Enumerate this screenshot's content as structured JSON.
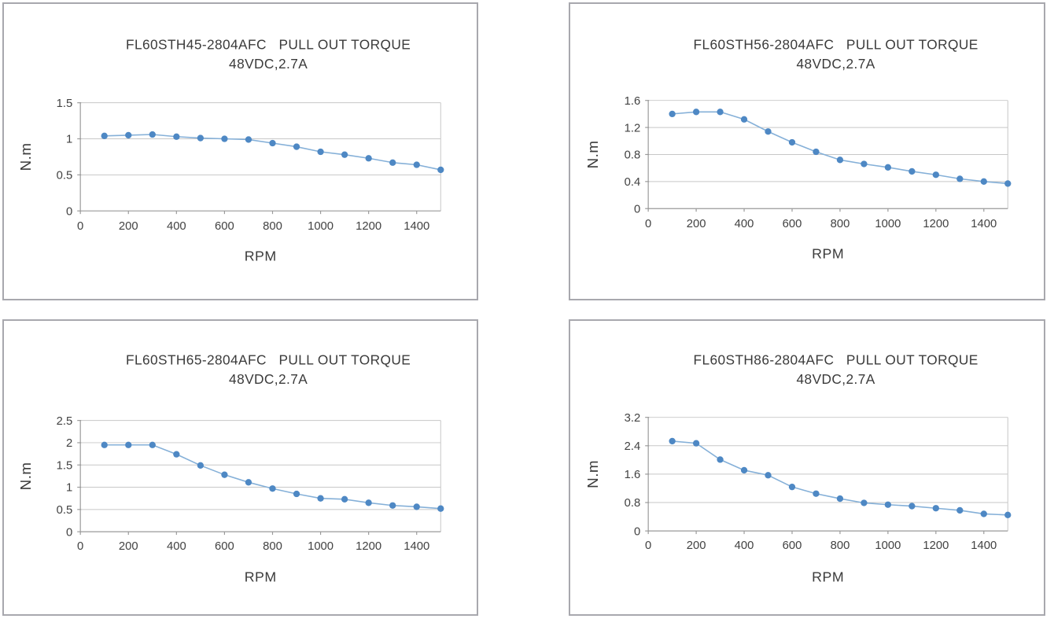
{
  "page": {
    "background": "#ffffff",
    "description_colors": {
      "box_border": "#a8a8ae",
      "axis_line": "#9a9a9a",
      "gridline": "#c7c7c7",
      "marker": "#4e88c4",
      "line": "#85b0d8",
      "text": "#3b3b3b"
    }
  },
  "chart_data": [
    {
      "type": "line",
      "title": "FL60STH45-2804AFC   PULL OUT TORQUE",
      "subtitle": "48VDC,2.7A",
      "xlabel": "RPM",
      "ylabel": "N.m",
      "x": [
        100,
        200,
        300,
        400,
        500,
        600,
        700,
        800,
        900,
        1000,
        1100,
        1200,
        1300,
        1400,
        1500
      ],
      "series": [
        {
          "name": "pull-out-torque",
          "values": [
            1.04,
            1.05,
            1.06,
            1.03,
            1.01,
            1.0,
            0.99,
            0.94,
            0.89,
            0.82,
            0.78,
            0.73,
            0.67,
            0.64,
            0.57
          ]
        }
      ],
      "xlim": [
        0,
        1500
      ],
      "ylim": [
        0,
        1.5
      ],
      "ytick_values": [
        0,
        0.5,
        1,
        1.5
      ],
      "ytick_labels": [
        "0",
        "0.5",
        "1",
        "1.5"
      ],
      "xtick_values": [
        0,
        200,
        400,
        600,
        800,
        1000,
        1200,
        1400
      ],
      "xtick_labels": [
        "0",
        "200",
        "400",
        "600",
        "800",
        "1000",
        "1200",
        "1400"
      ],
      "grid": "horizontal",
      "legend": "none",
      "marker_color": "#4e88c4",
      "line_color": "#85b0d8"
    },
    {
      "type": "line",
      "title": "FL60STH56-2804AFC   PULL OUT TORQUE",
      "subtitle": "48VDC,2.7A",
      "xlabel": "RPM",
      "ylabel": "N.m",
      "x": [
        100,
        200,
        300,
        400,
        500,
        600,
        700,
        800,
        900,
        1000,
        1100,
        1200,
        1300,
        1400,
        1500
      ],
      "series": [
        {
          "name": "pull-out-torque",
          "values": [
            1.4,
            1.43,
            1.43,
            1.32,
            1.14,
            0.98,
            0.84,
            0.72,
            0.66,
            0.61,
            0.55,
            0.5,
            0.44,
            0.4,
            0.37
          ]
        }
      ],
      "xlim": [
        0,
        1500
      ],
      "ylim": [
        0,
        1.6
      ],
      "ytick_values": [
        0,
        0.4,
        0.8,
        1.2,
        1.6
      ],
      "ytick_labels": [
        "0",
        "0.4",
        "0.8",
        "1.2",
        "1.6"
      ],
      "xtick_values": [
        0,
        200,
        400,
        600,
        800,
        1000,
        1200,
        1400
      ],
      "xtick_labels": [
        "0",
        "200",
        "400",
        "600",
        "800",
        "1000",
        "1200",
        "1400"
      ],
      "grid": "horizontal",
      "legend": "none",
      "marker_color": "#4e88c4",
      "line_color": "#85b0d8"
    },
    {
      "type": "line",
      "title": "FL60STH65-2804AFC   PULL OUT TORQUE",
      "subtitle": "48VDC,2.7A",
      "xlabel": "RPM",
      "ylabel": "N.m",
      "x": [
        100,
        200,
        300,
        400,
        500,
        600,
        700,
        800,
        900,
        1000,
        1100,
        1200,
        1300,
        1400,
        1500
      ],
      "series": [
        {
          "name": "pull-out-torque",
          "values": [
            1.95,
            1.95,
            1.95,
            1.74,
            1.49,
            1.28,
            1.11,
            0.97,
            0.85,
            0.75,
            0.73,
            0.65,
            0.59,
            0.56,
            0.52
          ]
        }
      ],
      "xlim": [
        0,
        1500
      ],
      "ylim": [
        0,
        2.5
      ],
      "ytick_values": [
        0,
        0.5,
        1,
        1.5,
        2,
        2.5
      ],
      "ytick_labels": [
        "0",
        "0.5",
        "1",
        "1.5",
        "2",
        "2.5"
      ],
      "xtick_values": [
        0,
        200,
        400,
        600,
        800,
        1000,
        1200,
        1400
      ],
      "xtick_labels": [
        "0",
        "200",
        "400",
        "600",
        "800",
        "1000",
        "1200",
        "1400"
      ],
      "grid": "horizontal",
      "legend": "none",
      "marker_color": "#4e88c4",
      "line_color": "#85b0d8"
    },
    {
      "type": "line",
      "title": "FL60STH86-2804AFC   PULL OUT TORQUE",
      "subtitle": "48VDC,2.7A",
      "xlabel": "RPM",
      "ylabel": "N.m",
      "x": [
        100,
        200,
        300,
        400,
        500,
        600,
        700,
        800,
        900,
        1000,
        1100,
        1200,
        1300,
        1400,
        1500
      ],
      "series": [
        {
          "name": "pull-out-torque",
          "values": [
            2.53,
            2.47,
            2.01,
            1.71,
            1.57,
            1.24,
            1.05,
            0.91,
            0.79,
            0.74,
            0.7,
            0.64,
            0.58,
            0.48,
            0.45
          ]
        }
      ],
      "xlim": [
        0,
        1500
      ],
      "ylim": [
        0,
        3.2
      ],
      "ytick_values": [
        0,
        0.8,
        1.6,
        2.4,
        3.2
      ],
      "ytick_labels": [
        "0",
        "0.8",
        "1.6",
        "2.4",
        "3.2"
      ],
      "xtick_values": [
        0,
        200,
        400,
        600,
        800,
        1000,
        1200,
        1400
      ],
      "xtick_labels": [
        "0",
        "200",
        "400",
        "600",
        "800",
        "1000",
        "1200",
        "1400"
      ],
      "grid": "horizontal",
      "legend": "none",
      "marker_color": "#4e88c4",
      "line_color": "#85b0d8"
    }
  ]
}
